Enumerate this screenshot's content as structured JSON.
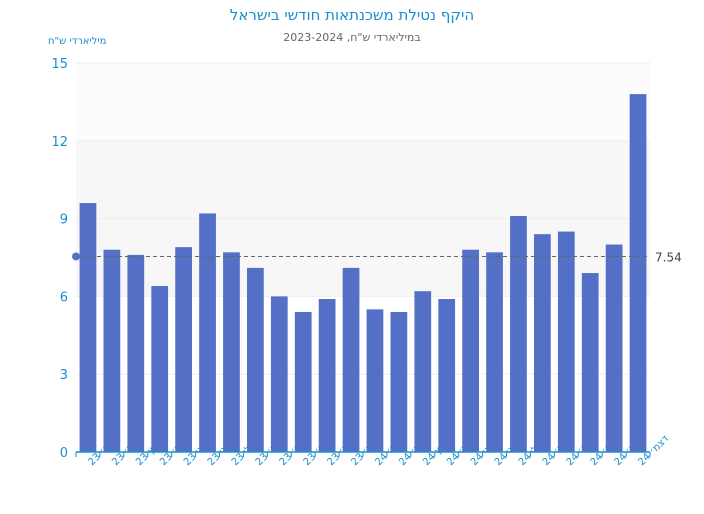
{
  "chart_data": {
    "type": "bar",
    "title": "היקף נטילת משכנתאות חודשי בישראל",
    "subtitle": "במיליארדי ש\"ח, 2023-2024",
    "ylabel": "מיליארדי ש\"ח",
    "ylim": [
      0,
      15
    ],
    "yticks": [
      0,
      3,
      6,
      9,
      12,
      15
    ],
    "categories": [
      "ינו׳ 23",
      "פבר׳ 23",
      "מרץ 23",
      "אפר׳ 23",
      "מאי 23",
      "יוני 23",
      "יולי 23",
      "אוג׳ 23",
      "ספט׳ 23",
      "אוק׳ 23",
      "נוב׳ 23",
      "דצמ׳ 23",
      "ינו׳ 24",
      "פבר׳ 24",
      "מרץ 24",
      "אפר׳ 24",
      "מאי 24",
      "יוני 24",
      "יולי 24",
      "אוג׳ 24",
      "ספט׳ 24",
      "אוק׳ 24",
      "נוב׳ 24",
      "דצמ׳ 24"
    ],
    "values": [
      9.6,
      7.8,
      7.6,
      6.4,
      7.9,
      9.2,
      7.7,
      7.1,
      6.0,
      5.4,
      5.9,
      7.1,
      5.5,
      5.4,
      6.2,
      5.9,
      7.8,
      7.7,
      9.1,
      8.4,
      8.5,
      6.9,
      8.0,
      13.8
    ],
    "average": {
      "value": 7.54,
      "label": "7.54"
    },
    "color": "#5470c6",
    "axis_color": "#1a8fd0"
  }
}
